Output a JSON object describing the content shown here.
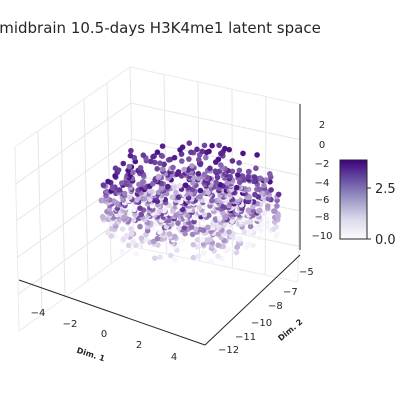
{
  "chart_data": {
    "type": "scatter",
    "title": "midbrain 10.5-days  H3K4me1 latent space",
    "xlabel": "Dim. 1",
    "ylabel": "Dim. 2",
    "zlabel": "",
    "x_ticks": [
      "−4",
      "−2",
      "0",
      "2",
      "4"
    ],
    "y_ticks": [
      "−5",
      "−7",
      "−8",
      "−10",
      "−11",
      "−12"
    ],
    "z_ticks": [
      "2",
      "0",
      "−2",
      "−4",
      "−6",
      "−8",
      "−10"
    ],
    "xlim": [
      -5,
      5
    ],
    "ylim": [
      -12.5,
      -4.5
    ],
    "zlim": [
      -10.5,
      3
    ],
    "projection": "3d",
    "grid": true,
    "colormap": "Purples",
    "colorbar": {
      "ticks": [
        "0.0",
        "2.5"
      ],
      "range": [
        0,
        4
      ],
      "low_color": "#fcfbfd",
      "high_color": "#3f007d"
    },
    "point_color_top": "#4a1486",
    "point_color_bottom": "#f7f5fb"
  }
}
